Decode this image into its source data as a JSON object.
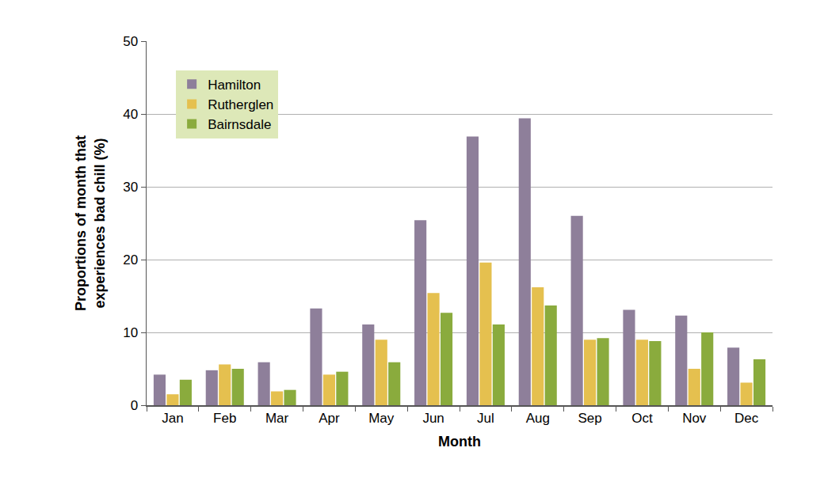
{
  "chart_data": {
    "type": "bar",
    "x_label": "Month",
    "y_label": "Proportions of month that experiences bad chill (%)",
    "categories": [
      "Jan",
      "Feb",
      "Mar",
      "Apr",
      "May",
      "Jun",
      "Jul",
      "Aug",
      "Sep",
      "Oct",
      "Nov",
      "Dec"
    ],
    "series": [
      {
        "name": "Hamilton",
        "color": "#8e7f9a",
        "values": [
          4.2,
          4.8,
          5.9,
          13.3,
          11.1,
          25.4,
          36.9,
          39.4,
          26.0,
          13.1,
          12.3,
          7.9
        ]
      },
      {
        "name": "Rutherglen",
        "color": "#e5c04f",
        "values": [
          1.5,
          5.6,
          1.9,
          4.2,
          9.0,
          15.4,
          19.6,
          16.2,
          9.0,
          9.0,
          5.0,
          3.1
        ]
      },
      {
        "name": "Bairnsdale",
        "color": "#8aab3d",
        "values": [
          3.5,
          5.0,
          2.1,
          4.6,
          5.9,
          12.7,
          11.1,
          13.7,
          9.2,
          8.8,
          10.0,
          6.3
        ]
      }
    ],
    "ylim": [
      0,
      50
    ],
    "yticks": [
      0,
      10,
      20,
      30,
      40,
      50
    ],
    "grid": true,
    "legend": "top left"
  }
}
